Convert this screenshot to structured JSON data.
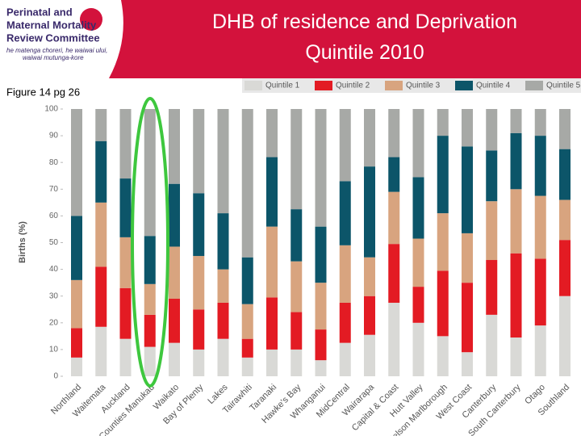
{
  "header": {
    "org_line1": "Perinatal and",
    "org_line2": "Maternal Mortality",
    "org_line3": "Review Committee",
    "tagline1": "he matenga choreri, he waiwai ului,",
    "tagline2": "waiwai mutunga-kore"
  },
  "note": "Figure 14 pg 26",
  "chart_data": {
    "type": "stacked-bar",
    "title": "DHB of residence and Deprivation Quintile 2010",
    "y_label": "Births (%)",
    "categories": [
      "Northland",
      "Waitemata",
      "Auckland",
      "Counties Manukau",
      "Waikato",
      "Bay of Plenty",
      "Lakes",
      "Tairawhiti",
      "Taranaki",
      "Hawke's Bay",
      "Whanganui",
      "MidCentral",
      "Wairarapa",
      "Capital & Coast",
      "Hutt Valley",
      "Nelson Marlborough",
      "West Coast",
      "Canterbury",
      "South Canterbury",
      "Otago",
      "Southland"
    ],
    "series": [
      {
        "name": "Quintile 1",
        "color": "#d9d9d6",
        "values": [
          7,
          18.5,
          14,
          11,
          12.5,
          10,
          14,
          7,
          10,
          10,
          6,
          12.5,
          15.5,
          27.5,
          20,
          15,
          9,
          23,
          14.5,
          19,
          30
        ]
      },
      {
        "name": "Quintile 2",
        "color": "#e31b23",
        "values": [
          11,
          22.5,
          19,
          12,
          16.5,
          15,
          13.5,
          7,
          19.5,
          14,
          11.5,
          15,
          14.5,
          22,
          13.5,
          24.5,
          26,
          20.5,
          31.5,
          25,
          21
        ]
      },
      {
        "name": "Quintile 3",
        "color": "#d8a47f",
        "values": [
          18,
          24,
          19,
          11.5,
          19.5,
          20,
          12.5,
          13,
          26.5,
          19,
          17.5,
          21.5,
          14.5,
          19.5,
          18,
          21.5,
          18.5,
          22,
          24,
          23.5,
          15
        ]
      },
      {
        "name": "Quintile 4",
        "color": "#0c5569",
        "values": [
          24,
          23,
          22,
          18,
          23.5,
          23.5,
          21,
          17.5,
          26,
          19.5,
          21,
          24,
          34,
          13,
          23,
          29,
          32.5,
          19,
          21,
          22.5,
          19
        ]
      },
      {
        "name": "Quintile 5",
        "color": "#a7a9a6",
        "values": [
          40,
          12,
          26,
          47.5,
          28,
          31.5,
          39,
          55.5,
          18,
          37.5,
          44,
          27,
          21.5,
          18,
          25.5,
          10,
          14,
          15.5,
          9,
          10,
          15
        ]
      }
    ],
    "ylim": [
      0,
      100
    ],
    "yticks": [
      0,
      10,
      20,
      30,
      40,
      50,
      60,
      70,
      80,
      90,
      100
    ]
  }
}
